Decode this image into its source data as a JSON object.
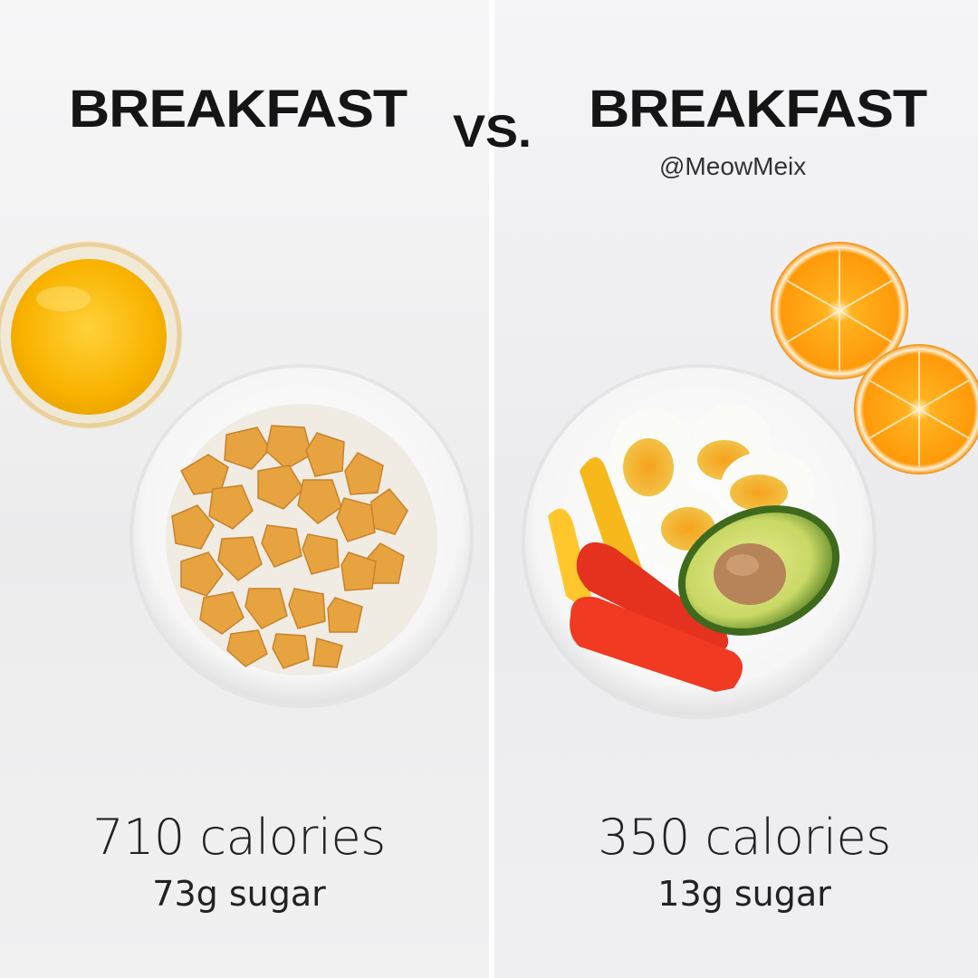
{
  "left": {
    "heading": "BREAKFAST",
    "calories": "710 calories",
    "sugar": "73g sugar"
  },
  "vs": "VS.",
  "right": {
    "heading": "BREAKFAST",
    "handle": "@MeowMeix",
    "calories": "350 calories",
    "sugar": "13g sugar"
  }
}
